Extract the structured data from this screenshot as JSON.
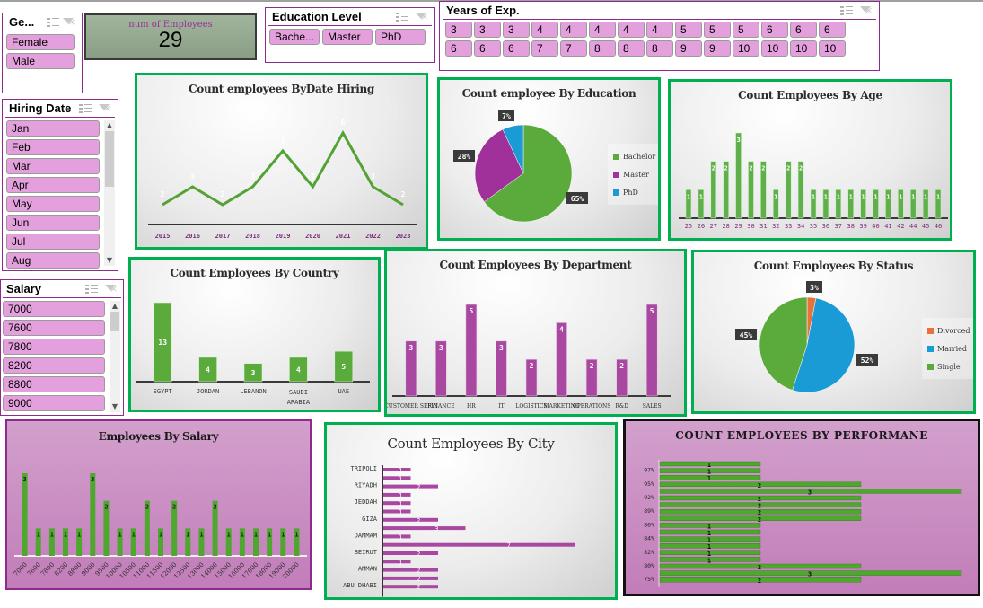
{
  "slicers": {
    "gender": {
      "title": "Ge...",
      "items": [
        "Female",
        "Male"
      ]
    },
    "education": {
      "title": "Education Level",
      "items": [
        "Bache...",
        "Master",
        "PhD"
      ]
    },
    "years_exp": {
      "title": "Years of Exp.",
      "items": [
        "3",
        "3",
        "3",
        "4",
        "4",
        "4",
        "4",
        "4",
        "5",
        "5",
        "5",
        "6",
        "6",
        "6",
        "6",
        "6",
        "6",
        "7",
        "7",
        "8",
        "8",
        "8",
        "9",
        "9",
        "10",
        "10",
        "10",
        "10"
      ]
    },
    "hiring_date": {
      "title": "Hiring Date",
      "items": [
        "Jan",
        "Feb",
        "Mar",
        "Apr",
        "May",
        "Jun",
        "Jul",
        "Aug"
      ]
    },
    "salary": {
      "title": "Salary",
      "items": [
        "7000",
        "7600",
        "7800",
        "8200",
        "8800",
        "9000"
      ]
    }
  },
  "kpi": {
    "label": "num of Employees",
    "value": "29"
  },
  "colors": {
    "green": "#5aaa3c",
    "purple": "#a848a0",
    "blue": "#1b9bd6",
    "orange": "#e8733a",
    "card_border": "#00b050",
    "slicer_border": "#8e2a8e",
    "chip": "#e4a0dc"
  },
  "chart_data": [
    {
      "id": "hiring",
      "type": "line",
      "title": "Count employees ByDate Hiring",
      "categories": [
        "2015",
        "2016",
        "2017",
        "2018",
        "2019",
        "2020",
        "2021",
        "2022",
        "2023"
      ],
      "values": [
        2,
        3,
        2,
        3,
        5,
        3,
        6,
        3,
        2
      ],
      "xlabel": "",
      "ylabel": "",
      "grid": false
    },
    {
      "id": "education",
      "type": "pie",
      "title": "Count employee By Education",
      "categories": [
        "Bachelor",
        "Master",
        "PhD"
      ],
      "values": [
        65,
        28,
        7
      ],
      "labels": [
        "65%",
        "28%",
        "7%"
      ],
      "colors": [
        "#5aaa3c",
        "#a0309a",
        "#1b9bd6"
      ],
      "legend_position": "right"
    },
    {
      "id": "age",
      "type": "bar",
      "title": "Count Employees By Age",
      "categories": [
        "25",
        "26",
        "27",
        "28",
        "29",
        "30",
        "31",
        "32",
        "33",
        "34",
        "35",
        "36",
        "37",
        "38",
        "39",
        "40",
        "41",
        "42",
        "44",
        "45",
        "46"
      ],
      "values": [
        1,
        1,
        2,
        2,
        3,
        2,
        2,
        1,
        2,
        2,
        1,
        1,
        1,
        1,
        1,
        1,
        1,
        1,
        1,
        1,
        1
      ]
    },
    {
      "id": "country",
      "type": "bar",
      "title": "Count Employees By Country",
      "categories": [
        "EGYPT",
        "JORDAN",
        "LEBANON",
        "SAUDI ARABIA",
        "UAE"
      ],
      "values": [
        13,
        4,
        3,
        4,
        5
      ]
    },
    {
      "id": "department",
      "type": "bar",
      "title": "Count Employees By Department",
      "categories": [
        "CUSTOMER SERVICE",
        "FINANCE",
        "HR",
        "IT",
        "LOGISTICS",
        "MARKETING",
        "OPERATIONS",
        "R&D",
        "SALES"
      ],
      "display_labels": [
        "CUSTOMER SERVI",
        "FINANCE",
        "HR",
        "IT",
        "LOGISTICS",
        "MARKETING",
        "OPERATIONS",
        "R&D",
        "SALES"
      ],
      "values": [
        3,
        3,
        5,
        3,
        2,
        4,
        2,
        2,
        5
      ]
    },
    {
      "id": "status",
      "type": "pie",
      "title": "Count Employees By Status",
      "categories": [
        "Divorced",
        "Married",
        "Single"
      ],
      "values": [
        3,
        52,
        45
      ],
      "labels": [
        "3%",
        "52%",
        "45%"
      ],
      "colors": [
        "#e8733a",
        "#1b9bd6",
        "#5aaa3c"
      ],
      "legend_position": "right"
    },
    {
      "id": "salary",
      "type": "bar",
      "title": "Employees By Salary",
      "categories": [
        "7000",
        "7600",
        "7800",
        "8200",
        "8800",
        "9000",
        "9500",
        "10000",
        "10500",
        "11000",
        "11500",
        "12000",
        "12500",
        "13000",
        "14000",
        "15000",
        "16000",
        "17000",
        "18000",
        "19000",
        "20000"
      ],
      "values": [
        3,
        1,
        1,
        1,
        1,
        3,
        2,
        1,
        1,
        2,
        1,
        2,
        1,
        1,
        2,
        1,
        1,
        1,
        1,
        1,
        1
      ]
    },
    {
      "id": "city",
      "type": "bar",
      "orientation": "horizontal",
      "title": "Count Employees By City",
      "axis_labels": [
        "TRIPOLI",
        "RIYADH",
        "JEDDAH",
        "GIZA",
        "DAMMAM",
        "BEIRUT",
        "AMMAN",
        "ABU DHABI"
      ],
      "values": [
        1,
        1,
        2,
        1,
        1,
        1,
        2,
        3,
        1,
        7,
        2,
        1,
        2,
        2,
        2
      ]
    },
    {
      "id": "performance",
      "type": "bar",
      "orientation": "horizontal",
      "title": "COUNT EMPLOYEES BY PERFORMANE",
      "axis_labels": [
        "97%",
        "95%",
        "92%",
        "89%",
        "86%",
        "84%",
        "82%",
        "80%",
        "75%"
      ],
      "values": [
        1,
        1,
        1,
        2,
        3,
        2,
        2,
        2,
        2,
        1,
        1,
        1,
        1,
        1,
        1,
        2,
        3,
        2
      ]
    }
  ]
}
